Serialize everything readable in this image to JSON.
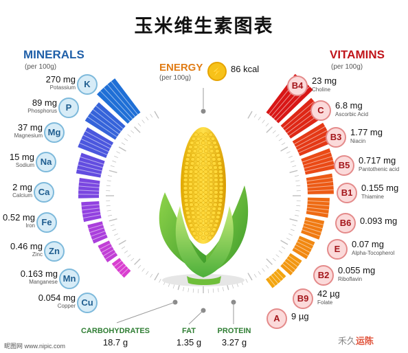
{
  "title": "玉米维生素图表",
  "minerals": {
    "title": "MINERALS",
    "sub": "(per 100g)",
    "items": [
      {
        "amount": "270 mg",
        "name": "Potassium",
        "symbol": "K"
      },
      {
        "amount": "89 mg",
        "name": "Phosphorus",
        "symbol": "P"
      },
      {
        "amount": "37 mg",
        "name": "Magnesium",
        "symbol": "Mg"
      },
      {
        "amount": "15 mg",
        "name": "Sodium",
        "symbol": "Na"
      },
      {
        "amount": "2 mg",
        "name": "Calcium",
        "symbol": "Ca"
      },
      {
        "amount": "0.52 mg",
        "name": "Iron",
        "symbol": "Fe"
      },
      {
        "amount": "0.46 mg",
        "name": "Zinc",
        "symbol": "Zn"
      },
      {
        "amount": "0.163 mg",
        "name": "Manganese",
        "symbol": "Mn"
      },
      {
        "amount": "0.054 mg",
        "name": "Copper",
        "symbol": "Cu"
      }
    ]
  },
  "vitamins": {
    "title": "VITAMINS",
    "sub": "(per 100g)",
    "items": [
      {
        "symbol": "B4",
        "amount": "23 mg",
        "name": "Choline"
      },
      {
        "symbol": "C",
        "amount": "6.8 mg",
        "name": "Ascorbic Acid"
      },
      {
        "symbol": "B3",
        "amount": "1.77 mg",
        "name": "Niacin"
      },
      {
        "symbol": "B5",
        "amount": "0.717 mg",
        "name": "Pantothenic acid"
      },
      {
        "symbol": "B1",
        "amount": "0.155 mg",
        "name": "Thiamine"
      },
      {
        "symbol": "B6",
        "amount": "0.093 mg",
        "name": ""
      },
      {
        "symbol": "E",
        "amount": "0.07 mg",
        "name": "Alpha-Tocopherol"
      },
      {
        "symbol": "B2",
        "amount": "0.055 mg",
        "name": "Riboflavin"
      },
      {
        "symbol": "B9",
        "amount": "42 µg",
        "name": "Folate"
      },
      {
        "symbol": "A",
        "amount": "9 µg",
        "name": ""
      }
    ]
  },
  "energy": {
    "label": "ENERGY",
    "sub": "(per 100g)",
    "value": "86 kcal",
    "icon": "lightning-icon"
  },
  "macros": [
    {
      "label": "CARBOHYDRATES",
      "value": "18.7 g"
    },
    {
      "label": "FAT",
      "value": "1.35 g"
    },
    {
      "label": "PROTEIN",
      "value": "3.27 g"
    }
  ],
  "footer": "昵图网 www.nipic.com",
  "watermark": {
    "prefix": "禾久",
    "highlight": "运陈"
  },
  "colors": {
    "mineral_gradient": [
      "#1f6fd6",
      "#5a4fe0",
      "#9a3fe0",
      "#d93fd0"
    ],
    "vitamin_gradient": [
      "#d81616",
      "#ea4a16",
      "#f07a12",
      "#f3a510"
    ],
    "corn": "#f4c516",
    "husk": "#5cb82e"
  }
}
